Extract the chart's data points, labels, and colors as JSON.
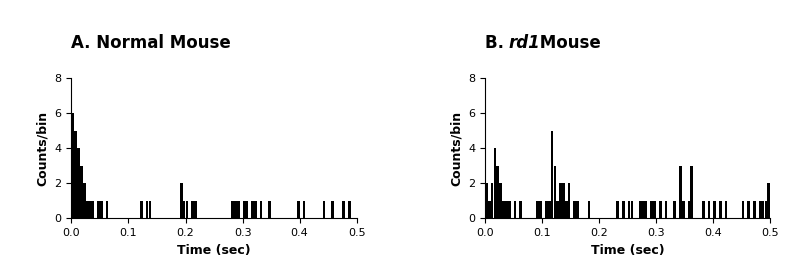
{
  "title_A": "A. Normal Mouse",
  "title_B_parts": [
    "B. ",
    "rd1",
    " Mouse"
  ],
  "xlabel": "Time (sec)",
  "ylabel": "Counts/bin",
  "ylim": [
    0,
    8
  ],
  "yticks": [
    0,
    2,
    4,
    6,
    8
  ],
  "xlim": [
    0,
    0.5
  ],
  "xticks": [
    0.0,
    0.1,
    0.2,
    0.3,
    0.4,
    0.5
  ],
  "bin_width": 0.005,
  "bar_color": "#000000",
  "background_color": "#ffffff",
  "title_fontsize": 12,
  "axis_fontsize": 9,
  "tick_fontsize": 8,
  "psth_A": [
    6,
    5,
    4,
    3,
    2,
    1,
    1,
    1,
    0,
    1,
    1,
    0,
    1,
    0,
    0,
    0,
    0,
    0,
    0,
    0,
    0,
    0,
    0,
    0,
    1,
    0,
    1,
    1,
    0,
    0,
    0,
    0,
    0,
    0,
    0,
    0,
    0,
    0,
    2,
    1,
    1,
    0,
    1,
    1,
    0,
    0,
    0,
    0,
    0,
    0,
    0,
    0,
    0,
    0,
    0,
    0,
    1,
    1,
    1,
    0,
    1,
    1,
    0,
    1,
    1,
    0,
    1,
    0,
    0,
    1,
    0,
    0,
    0,
    0,
    0,
    0,
    0,
    0,
    0,
    1,
    0,
    1,
    0,
    0,
    0,
    0,
    0,
    0,
    1,
    0,
    0,
    1,
    0,
    0,
    0,
    1,
    0,
    1,
    0,
    0
  ],
  "psth_B": [
    2,
    1,
    2,
    4,
    3,
    2,
    1,
    1,
    1,
    0,
    1,
    0,
    1,
    0,
    0,
    0,
    0,
    0,
    1,
    1,
    0,
    1,
    1,
    5,
    3,
    1,
    2,
    2,
    1,
    2,
    0,
    1,
    1,
    0,
    0,
    0,
    1,
    0,
    0,
    0,
    0,
    0,
    0,
    0,
    0,
    0,
    1,
    0,
    1,
    0,
    1,
    1,
    0,
    0,
    1,
    1,
    1,
    0,
    1,
    1,
    0,
    1,
    0,
    1,
    0,
    0,
    1,
    0,
    3,
    1,
    0,
    1,
    3,
    0,
    0,
    0,
    1,
    0,
    1,
    0,
    1,
    0,
    1,
    0,
    1,
    0,
    0,
    0,
    0,
    0,
    1,
    0,
    1,
    0,
    1,
    0,
    1,
    1,
    1,
    2
  ]
}
